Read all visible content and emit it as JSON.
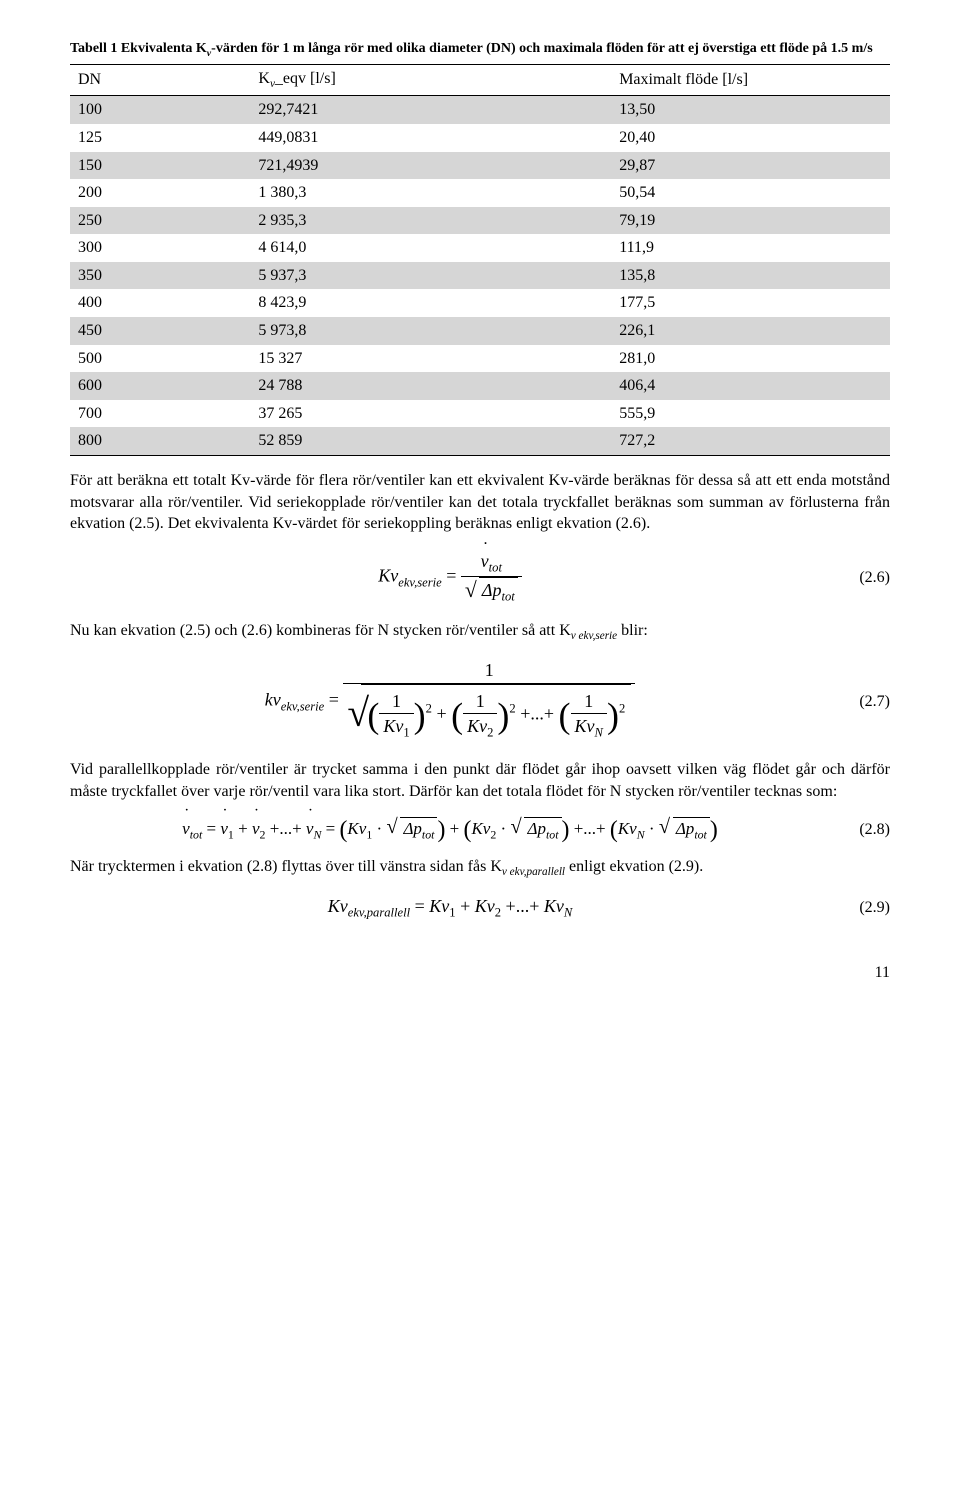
{
  "table": {
    "caption_a": "Tabell 1 Ekvivalenta K",
    "caption_b": "-värden för 1 m långa rör med olika diameter (DN) och maximala flöden för att ej överstiga ett flöde på 1.5 m/s",
    "caption_sub": "v",
    "headers": {
      "dn": "DN",
      "kv_a": "K",
      "kv_sub": "v",
      "kv_b": "_eqv [l/s]",
      "mf": "Maximalt flöde [l/s]"
    },
    "col_widths": {
      "dn": "22%",
      "kv": "44%",
      "mf": "34%"
    },
    "band_color": "#d6d6d6",
    "rows": [
      {
        "dn": "100",
        "kv": "292,7421",
        "mf": "13,50"
      },
      {
        "dn": "125",
        "kv": "449,0831",
        "mf": "20,40"
      },
      {
        "dn": "150",
        "kv": "721,4939",
        "mf": "29,87"
      },
      {
        "dn": "200",
        "kv": "1 380,3",
        "mf": "50,54"
      },
      {
        "dn": "250",
        "kv": "2 935,3",
        "mf": "79,19"
      },
      {
        "dn": "300",
        "kv": "4 614,0",
        "mf": "111,9"
      },
      {
        "dn": "350",
        "kv": "5 937,3",
        "mf": "135,8"
      },
      {
        "dn": "400",
        "kv": "8 423,9",
        "mf": "177,5"
      },
      {
        "dn": "450",
        "kv": "5 973,8",
        "mf": "226,1"
      },
      {
        "dn": "500",
        "kv": "15 327",
        "mf": "281,0"
      },
      {
        "dn": "600",
        "kv": "24 788",
        "mf": "406,4"
      },
      {
        "dn": "700",
        "kv": "37 265",
        "mf": "555,9"
      },
      {
        "dn": "800",
        "kv": "52 859",
        "mf": "727,2"
      }
    ]
  },
  "para1": "För att beräkna ett totalt Kv-värde för flera rör/ventiler kan ett ekvivalent Kv-värde beräknas för dessa så att ett enda motstånd motsvarar alla rör/ventiler. Vid seriekopplade rör/ventiler kan det totala tryckfallet beräknas som summan av förlusterna från ekvation (2.5). Det ekvivalenta Kv-värdet för seriekoppling beräknas enligt ekvation (2.6).",
  "eq26": {
    "lhs_a": "Kv",
    "lhs_sub": "ekv,serie",
    "num_a": "v",
    "num_sub": "tot",
    "num_dot": "·",
    "den_a": "Δp",
    "den_sub": "tot",
    "num": "(2.6)"
  },
  "para2_a": "Nu kan ekvation (2.5) och (2.6) kombineras för N stycken rör/ventiler så att K",
  "para2_sub": "v ekv,serie",
  "para2_b": " blir:",
  "eq27": {
    "lhs_a": "kv",
    "lhs_sub": "ekv,serie",
    "one": "1",
    "terms": [
      {
        "kv": "Kv",
        "idx": "1"
      },
      {
        "kv": "Kv",
        "idx": "2"
      },
      {
        "kv": "Kv",
        "idx": "N"
      }
    ],
    "dots": "...",
    "plus": "+",
    "sq": "2",
    "num": "(2.7)"
  },
  "para3": "Vid parallellkopplade rör/ventiler är trycket samma i den punkt där flödet går ihop oavsett vilken väg flödet går och därför måste tryckfallet över varje rör/ventil vara lika stort. Därför kan det totala flödet för N stycken rör/ventiler tecknas som:",
  "eq28": {
    "vdot": "v",
    "dot": "·",
    "tot": "tot",
    "idx": [
      "1",
      "2",
      "N"
    ],
    "Kv": "Kv",
    "dp": "Δp",
    "plus": "+",
    "dots": "...",
    "eq": "=",
    "mult": "·",
    "num": "(2.8)"
  },
  "para4_a": "När trycktermen i ekvation (2.8) flyttas över till vänstra sidan fås K",
  "para4_sub": "v ekv,parallell",
  "para4_b": " enligt ekvation (2.9).",
  "eq29": {
    "lhs_a": "Kv",
    "lhs_sub": "ekv,parallell",
    "Kv": "Kv",
    "idx": [
      "1",
      "2",
      "N"
    ],
    "plus": "+",
    "dots": "...",
    "eq": "=",
    "num": "(2.9)"
  },
  "pageno": "11"
}
